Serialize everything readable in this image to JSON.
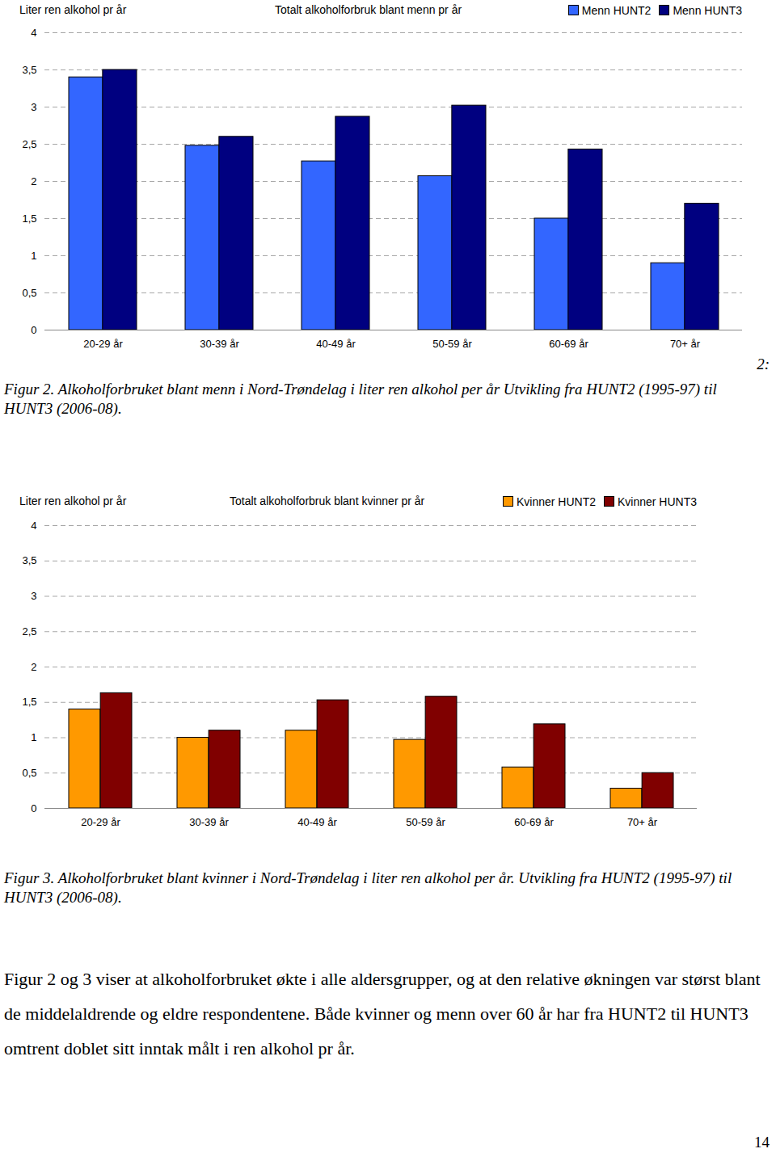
{
  "chart_data": [
    {
      "type": "bar",
      "title": "Totalt alkoholforbruk blant menn pr år",
      "y_label": "Liter ren alkohol pr år",
      "categories": [
        "20-29 år",
        "30-39 år",
        "40-49 år",
        "50-59 år",
        "60-69 år",
        "70+ år"
      ],
      "series": [
        {
          "name": "Menn HUNT2",
          "color": "#3366ff",
          "values": [
            3.4,
            2.48,
            2.27,
            2.07,
            1.5,
            0.9
          ]
        },
        {
          "name": "Menn HUNT3",
          "color": "#000080",
          "values": [
            3.5,
            2.6,
            2.87,
            3.02,
            2.43,
            1.7
          ]
        }
      ],
      "ylim": [
        0,
        4
      ],
      "yticks": [
        0,
        {
          "value": 0.5,
          "label": "0,5"
        },
        1,
        {
          "value": 1.5,
          "label": "1,5"
        },
        2,
        {
          "value": 2.5,
          "label": "2,5"
        },
        3,
        {
          "value": 3.5,
          "label": "3,5"
        },
        4
      ],
      "grid": true,
      "legend": "top-right"
    },
    {
      "type": "bar",
      "title": "Totalt alkoholforbruk blant kvinner pr år",
      "y_label": "Liter ren alkohol pr år",
      "categories": [
        "20-29 år",
        "30-39 år",
        "40-49 år",
        "50-59 år",
        "60-69 år",
        "70+ år"
      ],
      "series": [
        {
          "name": "Kvinner HUNT2",
          "color": "#ff9900",
          "values": [
            1.4,
            1.0,
            1.1,
            0.97,
            0.58,
            0.28
          ]
        },
        {
          "name": "Kvinner HUNT3",
          "color": "#800000",
          "values": [
            1.63,
            1.1,
            1.53,
            1.58,
            1.19,
            0.5
          ]
        }
      ],
      "ylim": [
        0,
        4
      ],
      "yticks": [
        0,
        {
          "value": 0.5,
          "label": "0,5"
        },
        1,
        {
          "value": 1.5,
          "label": "1,5"
        },
        2,
        {
          "value": 2.5,
          "label": "2,5"
        },
        3,
        {
          "value": 3.5,
          "label": "3,5"
        },
        4
      ],
      "grid": true,
      "legend": "top-right"
    }
  ],
  "captions": [
    "Figur 2. Alkoholforbruket blant menn i Nord-Trøndelag i liter ren alkohol per år Utvikling fra HUNT2 (1995-97) til HUNT3 (2006-08).",
    "Figur 3. Alkoholforbruket blant kvinner i Nord-Trøndelag i liter ren alkohol per år. Utvikling fra HUNT2 (1995-97) til HUNT3 (2006-08)."
  ],
  "margin_note": "2:",
  "body": "Figur 2 og 3 viser at alkoholforbruket økte i alle aldersgrupper, og at den relative økningen var størst blant de middelaldrende og eldre respondentene. Både kvinner og menn over 60 år har fra HUNT2 til HUNT3 omtrent doblet sitt inntak målt i ren alkohol pr år.",
  "page_number": "14"
}
